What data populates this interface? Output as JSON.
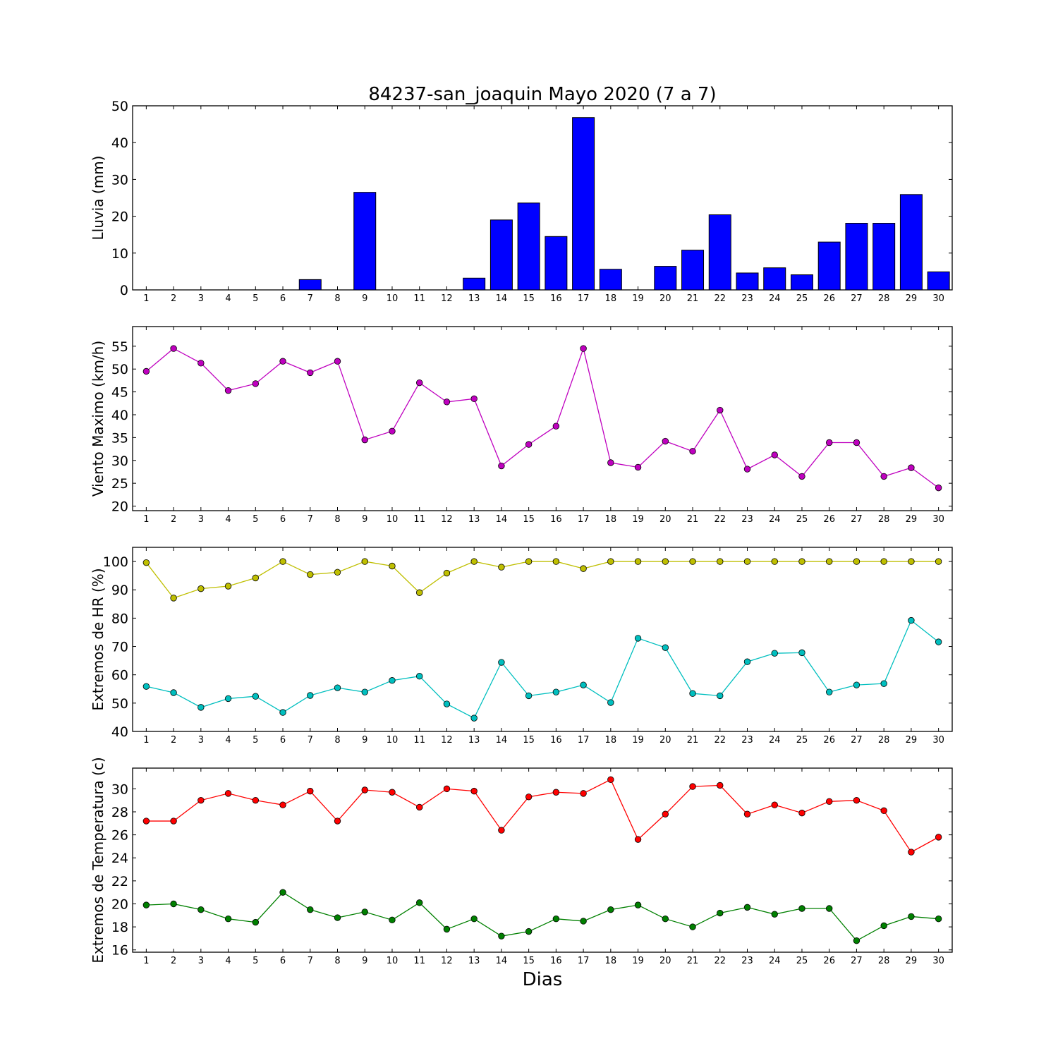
{
  "title": "84237-san_joaquin Mayo 2020  (7 a 7)",
  "xlabel": "Dias",
  "chart_data": [
    {
      "type": "bar",
      "ylabel": "Lluvia (mm)",
      "ylim": [
        0,
        50
      ],
      "yticks": [
        0,
        10,
        20,
        30,
        40,
        50
      ],
      "categories": [
        "1",
        "2",
        "3",
        "4",
        "5",
        "6",
        "7",
        "8",
        "9",
        "10",
        "11",
        "12",
        "13",
        "14",
        "15",
        "16",
        "17",
        "18",
        "19",
        "20",
        "21",
        "22",
        "23",
        "24",
        "25",
        "26",
        "27",
        "28",
        "29",
        "30"
      ],
      "series": [
        {
          "color": "#0000ff",
          "values": [
            0,
            0,
            0,
            0,
            0,
            0,
            2.8,
            0,
            26.5,
            0,
            0,
            0,
            3.2,
            19.0,
            23.6,
            14.5,
            46.8,
            5.6,
            0,
            6.4,
            10.8,
            20.4,
            4.6,
            6.0,
            4.1,
            13.0,
            18.1,
            18.1,
            25.9,
            4.9
          ]
        }
      ]
    },
    {
      "type": "line",
      "ylabel": "Viento Maximo (km/h)",
      "ylim": [
        19,
        59.3
      ],
      "yticks": [
        20,
        25,
        30,
        35,
        40,
        45,
        50,
        55
      ],
      "categories": [
        "1",
        "2",
        "3",
        "4",
        "5",
        "6",
        "7",
        "8",
        "9",
        "10",
        "11",
        "12",
        "13",
        "14",
        "15",
        "16",
        "17",
        "18",
        "19",
        "20",
        "21",
        "22",
        "23",
        "24",
        "25",
        "26",
        "27",
        "28",
        "29",
        "30"
      ],
      "series": [
        {
          "color": "#bf00bf",
          "values": [
            49.5,
            54.5,
            51.3,
            45.3,
            46.8,
            51.7,
            49.2,
            51.7,
            34.5,
            36.4,
            47.0,
            42.8,
            43.5,
            28.8,
            33.5,
            37.5,
            54.5,
            29.5,
            28.5,
            34.2,
            32.0,
            41.0,
            28.1,
            31.2,
            26.5,
            33.9,
            33.9,
            26.5,
            28.4,
            24.0
          ]
        }
      ]
    },
    {
      "type": "line",
      "ylabel": "Extremos de HR (%)",
      "ylim": [
        40,
        105
      ],
      "yticks": [
        40,
        50,
        60,
        70,
        80,
        90,
        100
      ],
      "categories": [
        "1",
        "2",
        "3",
        "4",
        "5",
        "6",
        "7",
        "8",
        "9",
        "10",
        "11",
        "12",
        "13",
        "14",
        "15",
        "16",
        "17",
        "18",
        "19",
        "20",
        "21",
        "22",
        "23",
        "24",
        "25",
        "26",
        "27",
        "28",
        "29",
        "30"
      ],
      "series": [
        {
          "color": "#bfbf00",
          "values": [
            99.6,
            87.1,
            90.4,
            91.3,
            94.2,
            100,
            95.4,
            96.2,
            100,
            98.4,
            89.0,
            95.9,
            100,
            98.0,
            100,
            100,
            97.5,
            100,
            100,
            100,
            100,
            100,
            100,
            100,
            100,
            100,
            100,
            100,
            100,
            100
          ]
        },
        {
          "color": "#00bfbf",
          "values": [
            55.9,
            53.7,
            48.5,
            51.6,
            52.4,
            46.7,
            52.7,
            55.4,
            53.9,
            58.0,
            59.5,
            49.7,
            44.7,
            64.4,
            52.6,
            53.9,
            56.4,
            50.2,
            72.9,
            69.6,
            53.4,
            52.6,
            64.6,
            67.6,
            67.8,
            53.9,
            56.4,
            56.9,
            79.2,
            71.6
          ]
        }
      ]
    },
    {
      "type": "line",
      "ylabel": "Extremos de Temperatura (c)",
      "ylim": [
        15.8,
        31.8
      ],
      "yticks": [
        16,
        18,
        20,
        22,
        24,
        26,
        28,
        30
      ],
      "categories": [
        "1",
        "2",
        "3",
        "4",
        "5",
        "6",
        "7",
        "8",
        "9",
        "10",
        "11",
        "12",
        "13",
        "14",
        "15",
        "16",
        "17",
        "18",
        "19",
        "20",
        "21",
        "22",
        "23",
        "24",
        "25",
        "26",
        "27",
        "28",
        "29",
        "30"
      ],
      "series": [
        {
          "color": "#ff0000",
          "values": [
            27.2,
            27.2,
            29.0,
            29.6,
            29.0,
            28.6,
            29.8,
            27.2,
            29.9,
            29.7,
            28.4,
            30.0,
            29.8,
            26.4,
            29.3,
            29.7,
            29.6,
            30.8,
            25.6,
            27.8,
            30.2,
            30.3,
            27.8,
            28.6,
            27.9,
            28.9,
            29.0,
            28.1,
            24.5,
            25.8
          ]
        },
        {
          "color": "#008000",
          "values": [
            19.9,
            20.0,
            19.5,
            18.7,
            18.4,
            21.0,
            19.5,
            18.8,
            19.3,
            18.6,
            20.1,
            17.8,
            18.7,
            17.2,
            17.6,
            18.7,
            18.5,
            19.5,
            19.9,
            18.7,
            18.0,
            19.2,
            19.7,
            19.1,
            19.6,
            19.6,
            16.8,
            18.1,
            18.9,
            18.7
          ]
        }
      ]
    }
  ]
}
